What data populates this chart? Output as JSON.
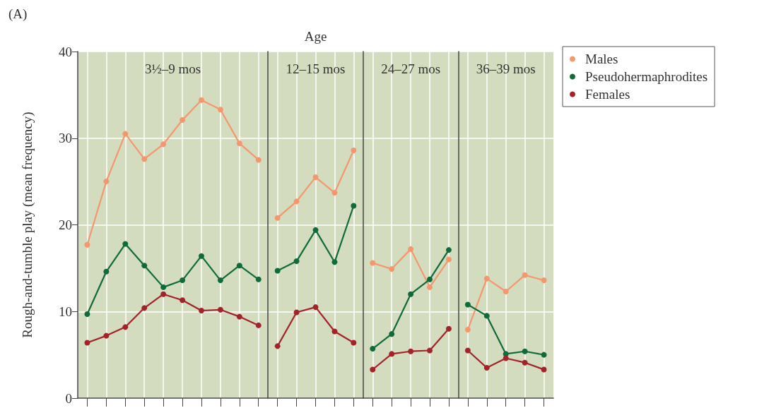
{
  "chart_data": {
    "type": "line",
    "ylabel": "Rough-and-tumble play (mean frequency)",
    "annotations": [
      "(A)",
      "Age",
      "3½–9 mos",
      "12–15 mos",
      "24–27 mos",
      "36–39 mos"
    ],
    "categories": [
      null,
      null,
      null,
      null,
      null,
      null,
      null,
      null,
      null,
      null,
      null,
      null,
      null,
      null,
      null,
      null,
      null,
      null,
      null,
      null,
      null,
      null,
      null,
      null,
      null
    ],
    "ylim": [
      0,
      40
    ],
    "yticks": [
      0,
      10,
      20,
      30,
      40
    ],
    "grid": true,
    "legend": "right",
    "tick_labels": "y",
    "marker": "circle",
    "series": [
      {
        "name": "Males",
        "color": "#f4976c",
        "values": [
          17.7,
          25,
          30.5,
          27.6,
          29.3,
          32.1,
          34.4,
          33.3,
          29.4,
          27.5,
          null,
          null,
          null,
          null,
          null,
          null,
          null,
          null,
          null,
          null,
          null,
          null,
          null,
          null,
          null
        ]
      },
      {
        "name": "Pseudohermaphrodites",
        "color": "#0f6b3a",
        "values": [
          9.7,
          14.6,
          17.8,
          15.3,
          12.8,
          13.6,
          16.4,
          13.6,
          15.3,
          13.7,
          null,
          null,
          null,
          null,
          null,
          null,
          null,
          null,
          null,
          null,
          null,
          null,
          null,
          null,
          null
        ]
      },
      {
        "name": "Females",
        "color": "#a3232b",
        "values": [
          6.4,
          7.2,
          8.2,
          10.4,
          12.0,
          11.3,
          10.1,
          10.2,
          9.4,
          8.4,
          null,
          null,
          null,
          null,
          null,
          null,
          null,
          null,
          null,
          null,
          null,
          null,
          null,
          null,
          null
        ]
      },
      {
        "color": "#f4976c",
        "values": [
          null,
          null,
          null,
          null,
          null,
          null,
          null,
          null,
          null,
          null,
          20.8,
          22.7,
          25.5,
          23.7,
          28.6,
          null,
          null,
          null,
          null,
          null,
          null,
          null,
          null,
          null,
          null
        ]
      },
      {
        "color": "#0f6b3a",
        "values": [
          null,
          null,
          null,
          null,
          null,
          null,
          null,
          null,
          null,
          null,
          14.7,
          15.8,
          19.4,
          15.7,
          22.2,
          null,
          null,
          null,
          null,
          null,
          null,
          null,
          null,
          null,
          null
        ]
      },
      {
        "color": "#a3232b",
        "values": [
          null,
          null,
          null,
          null,
          null,
          null,
          null,
          null,
          null,
          null,
          6.0,
          9.9,
          10.5,
          7.7,
          6.4,
          null,
          null,
          null,
          null,
          null,
          null,
          null,
          null,
          null,
          null
        ]
      },
      {
        "color": "#f4976c",
        "values": [
          null,
          null,
          null,
          null,
          null,
          null,
          null,
          null,
          null,
          null,
          null,
          null,
          null,
          null,
          null,
          15.6,
          14.9,
          17.2,
          12.8,
          16.0,
          null,
          null,
          null,
          null,
          null
        ]
      },
      {
        "color": "#0f6b3a",
        "values": [
          null,
          null,
          null,
          null,
          null,
          null,
          null,
          null,
          null,
          null,
          null,
          null,
          null,
          null,
          null,
          5.7,
          7.4,
          12.0,
          13.7,
          17.1,
          null,
          null,
          null,
          null,
          null
        ]
      },
      {
        "color": "#a3232b",
        "values": [
          null,
          null,
          null,
          null,
          null,
          null,
          null,
          null,
          null,
          null,
          null,
          null,
          null,
          null,
          null,
          3.3,
          5.1,
          5.4,
          5.5,
          8.0,
          null,
          null,
          null,
          null,
          null
        ]
      },
      {
        "color": "#f4976c",
        "values": [
          null,
          null,
          null,
          null,
          null,
          null,
          null,
          null,
          null,
          null,
          null,
          null,
          null,
          null,
          null,
          null,
          null,
          null,
          null,
          null,
          7.9,
          13.8,
          12.3,
          14.2,
          13.6
        ]
      },
      {
        "color": "#0f6b3a",
        "values": [
          null,
          null,
          null,
          null,
          null,
          null,
          null,
          null,
          null,
          null,
          null,
          null,
          null,
          null,
          null,
          null,
          null,
          null,
          null,
          null,
          10.8,
          9.5,
          5.1,
          5.4,
          5.0
        ]
      },
      {
        "color": "#a3232b",
        "values": [
          null,
          null,
          null,
          null,
          null,
          null,
          null,
          null,
          null,
          null,
          null,
          null,
          null,
          null,
          null,
          null,
          null,
          null,
          null,
          null,
          5.5,
          3.5,
          4.6,
          4.1,
          3.3
        ]
      }
    ]
  }
}
